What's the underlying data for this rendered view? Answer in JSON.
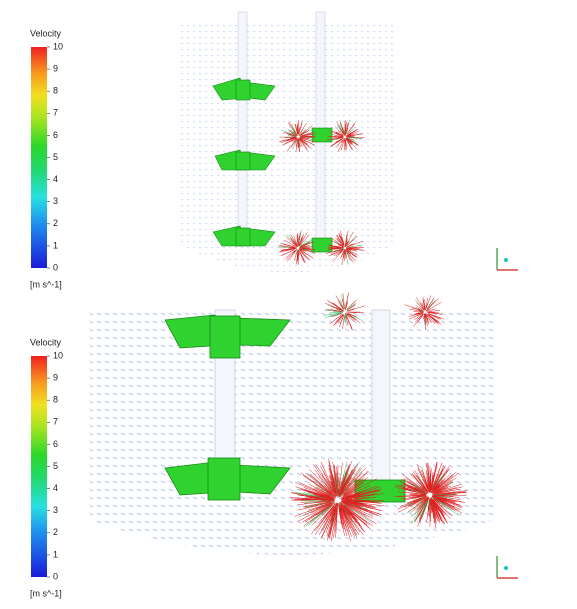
{
  "panels": [
    {
      "legend": {
        "title": "Velocity",
        "ticks": [
          0,
          1,
          2,
          3,
          4,
          5,
          6,
          7,
          8,
          9,
          10
        ],
        "unit": "[m s^-1]"
      }
    },
    {
      "legend": {
        "title": "Velocity",
        "ticks": [
          0,
          1,
          2,
          3,
          4,
          5,
          6,
          7,
          8,
          9,
          10
        ],
        "unit": "[m s^-1]"
      }
    }
  ]
}
